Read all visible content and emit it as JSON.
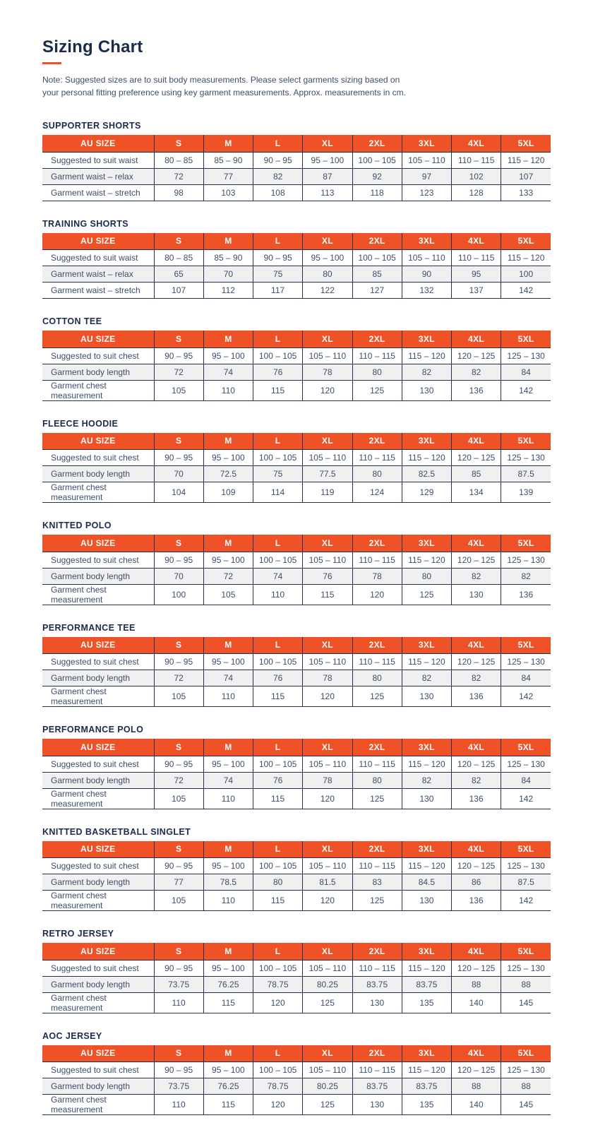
{
  "header": {
    "title": "Sizing Chart",
    "note_lines": [
      "Note: Suggested sizes are to suit body measurements. Please select garments sizing based on",
      "your personal fitting preference using key garment measurements. Approx. measurements in cm."
    ]
  },
  "colors": {
    "accent": "#EF5226",
    "border": "#25314F",
    "heading": "#1B2B4B",
    "text": "#3E4E6B",
    "alt_row": "#F0F0F1",
    "header_text": "#FFFFFF"
  },
  "columns": [
    "AU SIZE",
    "S",
    "M",
    "L",
    "XL",
    "2XL",
    "3XL",
    "4XL",
    "5XL"
  ],
  "tables": [
    {
      "title": "SUPPORTER SHORTS",
      "rows": [
        {
          "label": "Suggested to suit waist",
          "values": [
            "80 – 85",
            "85 – 90",
            "90 – 95",
            "95 – 100",
            "100 – 105",
            "105 – 110",
            "110 – 115",
            "115 – 120"
          ]
        },
        {
          "label": "Garment waist – relax",
          "values": [
            "72",
            "77",
            "82",
            "87",
            "92",
            "97",
            "102",
            "107"
          ]
        },
        {
          "label": "Garment waist – stretch",
          "values": [
            "98",
            "103",
            "108",
            "113",
            "118",
            "123",
            "128",
            "133"
          ]
        }
      ]
    },
    {
      "title": "TRAINING SHORTS",
      "rows": [
        {
          "label": "Suggested to suit waist",
          "values": [
            "80 – 85",
            "85 – 90",
            "90 – 95",
            "95 – 100",
            "100 – 105",
            "105 – 110",
            "110 – 115",
            "115 – 120"
          ]
        },
        {
          "label": "Garment waist – relax",
          "values": [
            "65",
            "70",
            "75",
            "80",
            "85",
            "90",
            "95",
            "100"
          ]
        },
        {
          "label": "Garment waist – stretch",
          "values": [
            "107",
            "112",
            "117",
            "122",
            "127",
            "132",
            "137",
            "142"
          ]
        }
      ]
    },
    {
      "title": "COTTON TEE",
      "rows": [
        {
          "label": "Suggested to suit chest",
          "values": [
            "90 – 95",
            "95 – 100",
            "100 – 105",
            "105 – 110",
            "110 – 115",
            "115 – 120",
            "120 – 125",
            "125 – 130"
          ]
        },
        {
          "label": "Garment body length",
          "values": [
            "72",
            "74",
            "76",
            "78",
            "80",
            "82",
            "82",
            "84"
          ]
        },
        {
          "label": "Garment chest measurement",
          "values": [
            "105",
            "110",
            "115",
            "120",
            "125",
            "130",
            "136",
            "142"
          ]
        }
      ]
    },
    {
      "title": "FLEECE HOODIE",
      "rows": [
        {
          "label": "Suggested to suit chest",
          "values": [
            "90 – 95",
            "95 – 100",
            "100 – 105",
            "105 – 110",
            "110 – 115",
            "115 – 120",
            "120 – 125",
            "125 – 130"
          ]
        },
        {
          "label": "Garment body length",
          "values": [
            "70",
            "72.5",
            "75",
            "77.5",
            "80",
            "82.5",
            "85",
            "87.5"
          ]
        },
        {
          "label": "Garment chest measurement",
          "values": [
            "104",
            "109",
            "114",
            "119",
            "124",
            "129",
            "134",
            "139"
          ]
        }
      ]
    },
    {
      "title": "KNITTED POLO",
      "rows": [
        {
          "label": "Suggested to suit chest",
          "values": [
            "90 – 95",
            "95 – 100",
            "100 – 105",
            "105 – 110",
            "110 – 115",
            "115 – 120",
            "120 – 125",
            "125 – 130"
          ]
        },
        {
          "label": "Garment body length",
          "values": [
            "70",
            "72",
            "74",
            "76",
            "78",
            "80",
            "82",
            "82"
          ]
        },
        {
          "label": "Garment chest measurement",
          "values": [
            "100",
            "105",
            "110",
            "115",
            "120",
            "125",
            "130",
            "136"
          ]
        }
      ]
    },
    {
      "title": "PERFORMANCE TEE",
      "rows": [
        {
          "label": "Suggested to suit chest",
          "values": [
            "90 – 95",
            "95 – 100",
            "100 – 105",
            "105 – 110",
            "110 – 115",
            "115 – 120",
            "120 – 125",
            "125 – 130"
          ]
        },
        {
          "label": "Garment body length",
          "values": [
            "72",
            "74",
            "76",
            "78",
            "80",
            "82",
            "82",
            "84"
          ]
        },
        {
          "label": "Garment chest measurement",
          "values": [
            "105",
            "110",
            "115",
            "120",
            "125",
            "130",
            "136",
            "142"
          ]
        }
      ]
    },
    {
      "title": "PERFORMANCE POLO",
      "rows": [
        {
          "label": "Suggested to suit chest",
          "values": [
            "90 – 95",
            "95 – 100",
            "100 – 105",
            "105 – 110",
            "110 – 115",
            "115 – 120",
            "120 – 125",
            "125 – 130"
          ]
        },
        {
          "label": "Garment body length",
          "values": [
            "72",
            "74",
            "76",
            "78",
            "80",
            "82",
            "82",
            "84"
          ]
        },
        {
          "label": "Garment chest measurement",
          "values": [
            "105",
            "110",
            "115",
            "120",
            "125",
            "130",
            "136",
            "142"
          ]
        }
      ]
    },
    {
      "title": "KNITTED BASKETBALL SINGLET",
      "rows": [
        {
          "label": "Suggested to suit chest",
          "values": [
            "90 – 95",
            "95 – 100",
            "100 – 105",
            "105 – 110",
            "110 – 115",
            "115 – 120",
            "120 – 125",
            "125 – 130"
          ]
        },
        {
          "label": "Garment body length",
          "values": [
            "77",
            "78.5",
            "80",
            "81.5",
            "83",
            "84.5",
            "86",
            "87.5"
          ]
        },
        {
          "label": "Garment chest measurement",
          "values": [
            "105",
            "110",
            "115",
            "120",
            "125",
            "130",
            "136",
            "142"
          ]
        }
      ]
    },
    {
      "title": "RETRO JERSEY",
      "rows": [
        {
          "label": "Suggested to suit chest",
          "values": [
            "90 – 95",
            "95 – 100",
            "100 – 105",
            "105 – 110",
            "110 – 115",
            "115 – 120",
            "120 – 125",
            "125 – 130"
          ]
        },
        {
          "label": "Garment body length",
          "values": [
            "73.75",
            "76.25",
            "78.75",
            "80.25",
            "83.75",
            "83.75",
            "88",
            "88"
          ]
        },
        {
          "label": "Garment chest measurement",
          "values": [
            "110",
            "115",
            "120",
            "125",
            "130",
            "135",
            "140",
            "145"
          ]
        }
      ]
    },
    {
      "title": "AOC JERSEY",
      "rows": [
        {
          "label": "Suggested to suit chest",
          "values": [
            "90 – 95",
            "95 – 100",
            "100 – 105",
            "105 – 110",
            "110 – 115",
            "115 – 120",
            "120 – 125",
            "125 – 130"
          ]
        },
        {
          "label": "Garment body length",
          "values": [
            "73.75",
            "76.25",
            "78.75",
            "80.25",
            "83.75",
            "83.75",
            "88",
            "88"
          ]
        },
        {
          "label": "Garment chest measurement",
          "values": [
            "110",
            "115",
            "120",
            "125",
            "130",
            "135",
            "140",
            "145"
          ]
        }
      ]
    }
  ]
}
